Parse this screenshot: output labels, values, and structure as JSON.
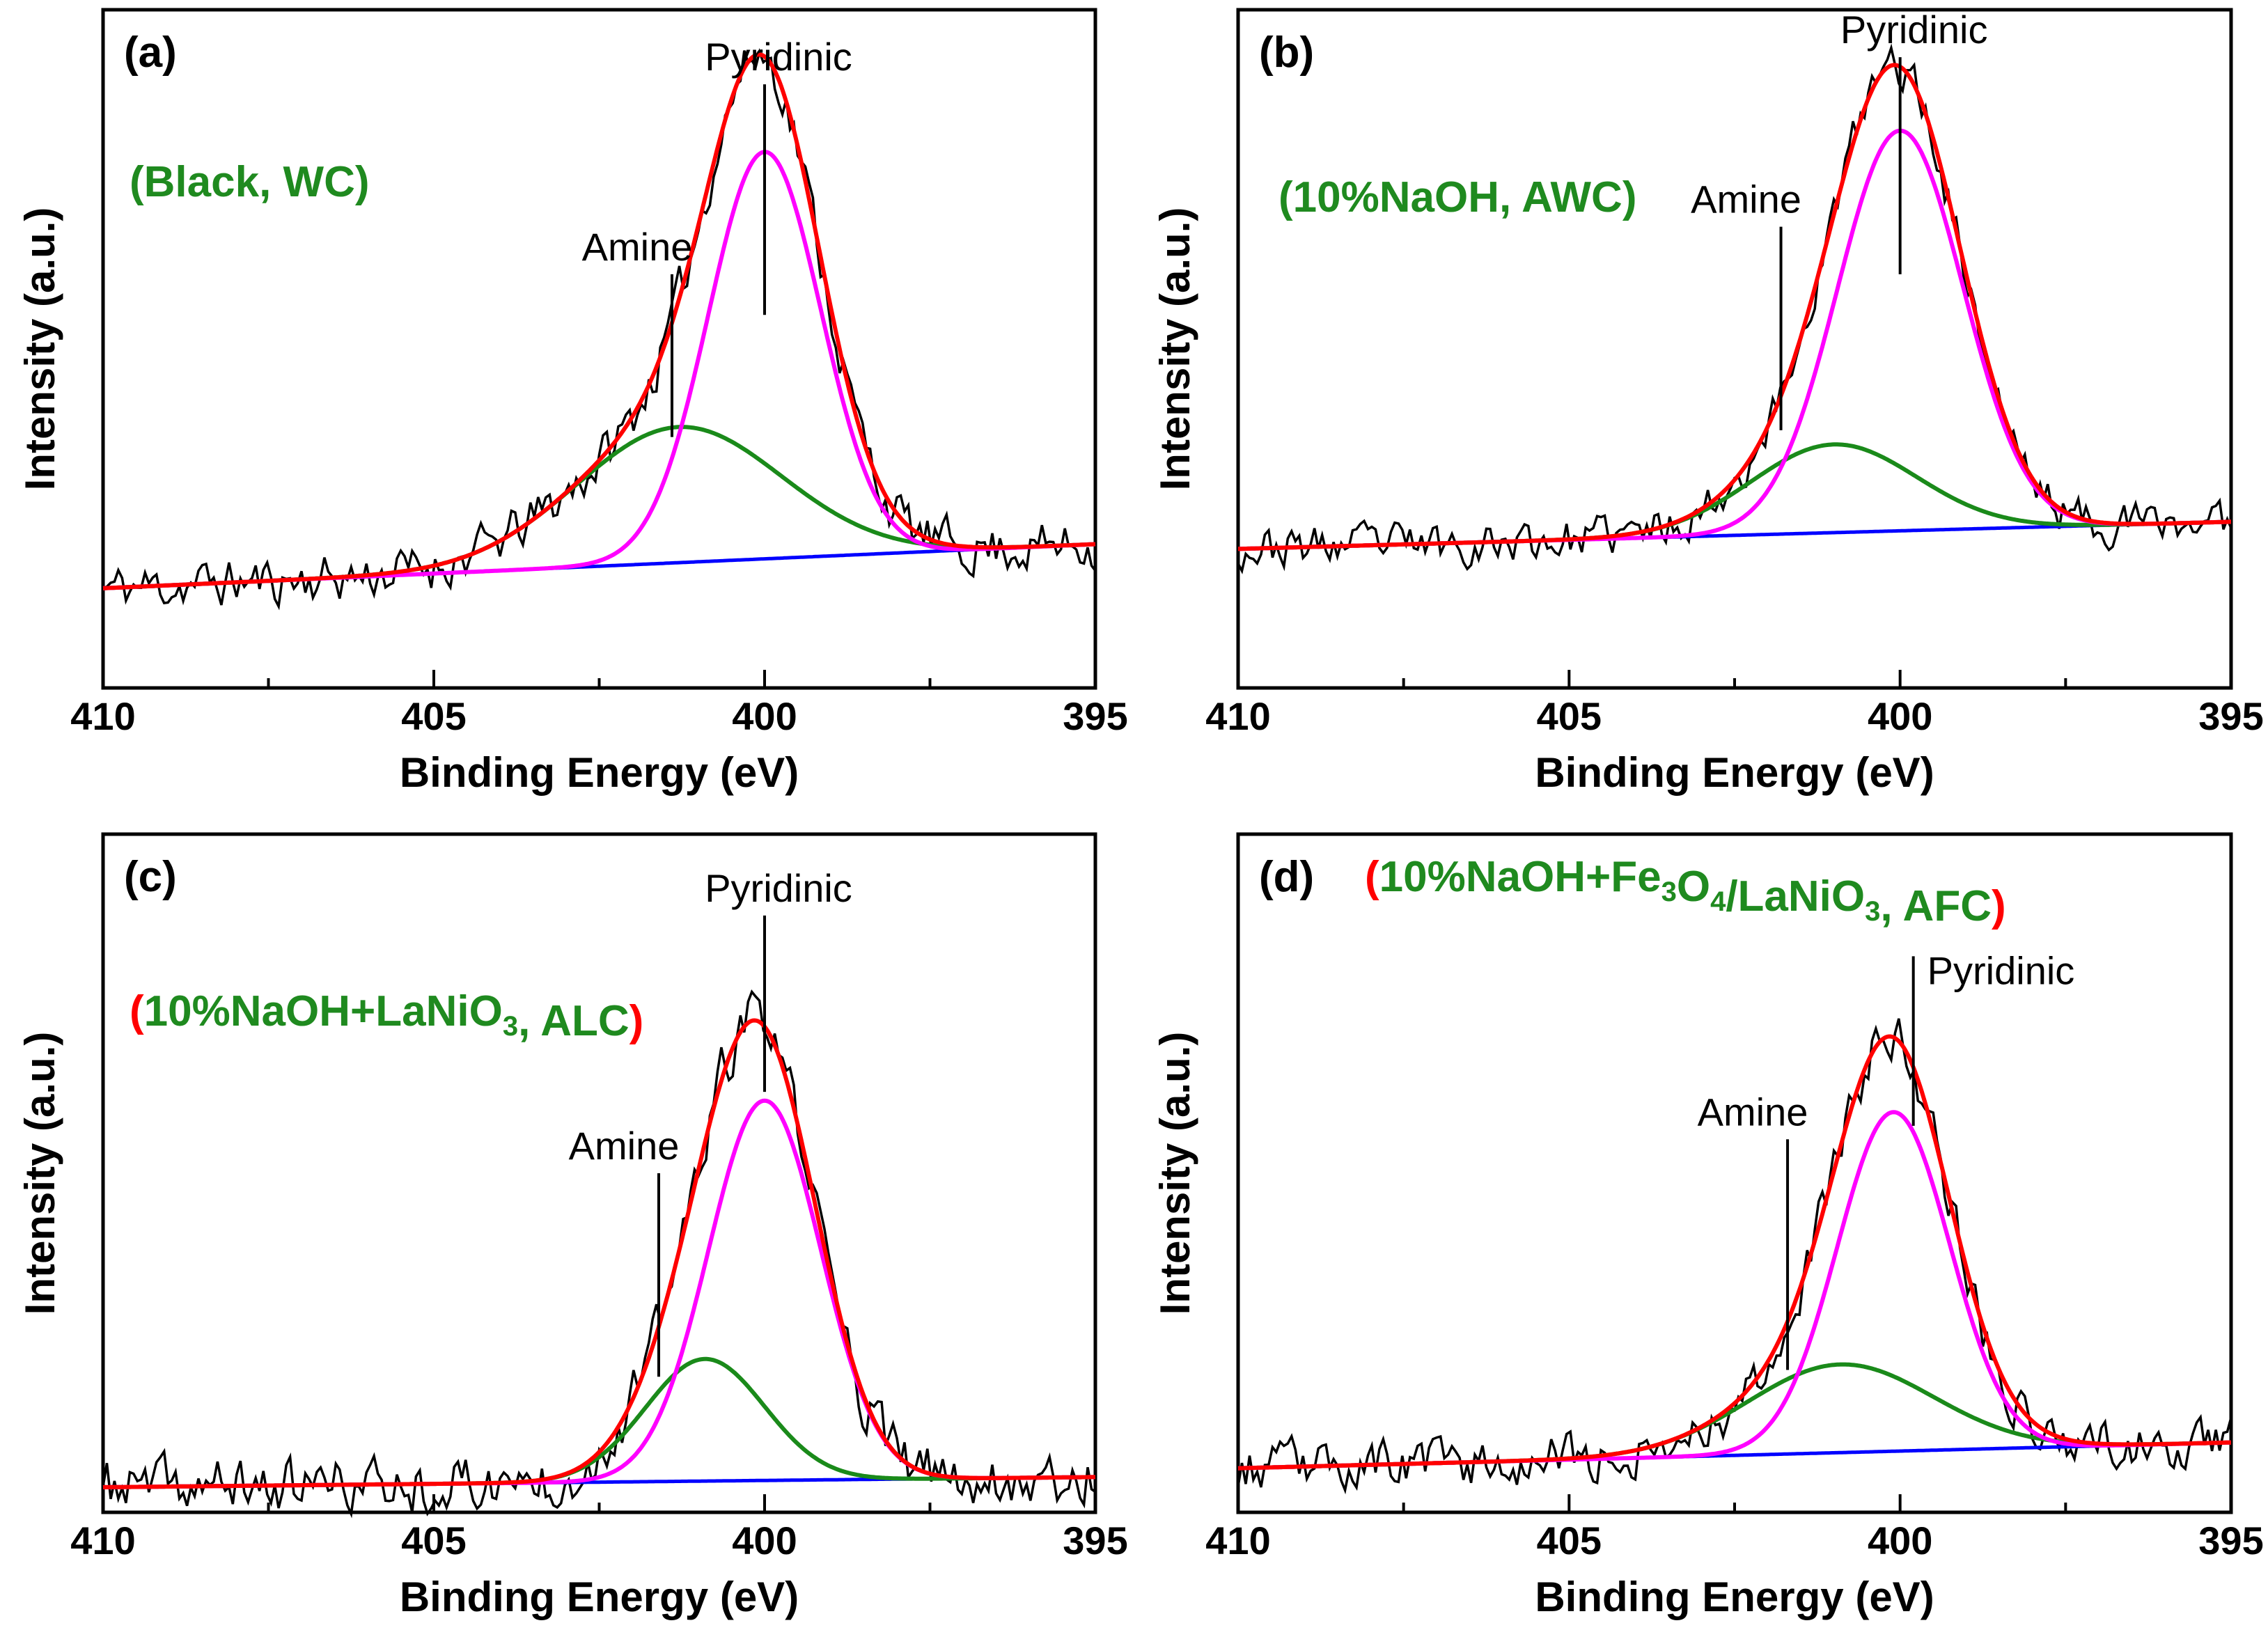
{
  "chart_data": [
    {
      "panel": "(a)",
      "type": "line",
      "sample_label": {
        "open": "(",
        "text": "Black, WC",
        "close": ")",
        "paren_color": "#1f8a1f"
      },
      "xlabel": "Binding Energy (eV)",
      "ylabel": "Intensity (a.u.)",
      "xlim": [
        410,
        395
      ],
      "ylim": [
        0,
        1
      ],
      "xticks": [
        410,
        405,
        400,
        395
      ],
      "annotations": [
        {
          "text": "Pyridinic",
          "x": 400.0,
          "y_tip": 0.89,
          "y_base": 0.55
        },
        {
          "text": "Amine",
          "x": 401.4,
          "y_tip": 0.61,
          "y_base": 0.37
        }
      ],
      "series": [
        {
          "name": "Baseline",
          "color": "#0000ff",
          "bg_start": 0.147,
          "bg_end": 0.212
        },
        {
          "name": "Pyridinic",
          "color": "#ff00ff",
          "center": 400.0,
          "sigma": 0.85,
          "amp": 0.6
        },
        {
          "name": "Amine",
          "color": "#1a8a1a",
          "center": 401.3,
          "sigma": 1.55,
          "amp": 0.2
        },
        {
          "name": "Envelope",
          "color": "#ff0000"
        },
        {
          "name": "Raw data",
          "color": "#000000",
          "noise": 0.035,
          "seed": 11
        }
      ]
    },
    {
      "panel": "(b)",
      "type": "line",
      "sample_label": {
        "open": "(",
        "text": "10%NaOH, AWC",
        "close": ")",
        "paren_color": "#1f8a1f"
      },
      "xlabel": "Binding Energy (eV)",
      "ylabel": "Intensity (a.u.)",
      "xlim": [
        410,
        395
      ],
      "ylim": [
        0,
        1
      ],
      "xticks": [
        410,
        405,
        400,
        395
      ],
      "annotations": [
        {
          "text": "Pyridinic",
          "x": 400.0,
          "y_tip": 0.93,
          "y_base": 0.61
        },
        {
          "text": "Amine",
          "x": 401.8,
          "y_tip": 0.68,
          "y_base": 0.38
        }
      ],
      "series": [
        {
          "name": "Baseline",
          "color": "#0000ff",
          "bg_start": 0.205,
          "bg_end": 0.245
        },
        {
          "name": "Pyridinic",
          "color": "#ff00ff",
          "center": 400.0,
          "sigma": 0.95,
          "amp": 0.59
        },
        {
          "name": "Amine",
          "color": "#1a8a1a",
          "center": 401.0,
          "sigma": 1.25,
          "amp": 0.13
        },
        {
          "name": "Envelope",
          "color": "#ff0000"
        },
        {
          "name": "Raw data",
          "color": "#000000",
          "noise": 0.03,
          "seed": 23
        }
      ]
    },
    {
      "panel": "(c)",
      "type": "line",
      "sample_label": {
        "open": "(",
        "text": "10%NaOH+LaNiO3, ALC",
        "close": ")",
        "paren_color": "#ff0000"
      },
      "xlabel": "Binding Energy (eV)",
      "ylabel": "Intensity (a.u.)",
      "xlim": [
        410,
        395
      ],
      "ylim": [
        0,
        1
      ],
      "xticks": [
        410,
        405,
        400,
        395
      ],
      "annotations": [
        {
          "text": "Pyridinic",
          "x": 400.0,
          "y_tip": 0.88,
          "y_base": 0.62
        },
        {
          "text": "Amine",
          "x": 401.6,
          "y_tip": 0.5,
          "y_base": 0.2
        }
      ],
      "series": [
        {
          "name": "Baseline",
          "color": "#0000ff",
          "bg_start": 0.037,
          "bg_end": 0.052
        },
        {
          "name": "Pyridinic",
          "color": "#ff00ff",
          "center": 400.0,
          "sigma": 0.85,
          "amp": 0.56
        },
        {
          "name": "Amine",
          "color": "#1a8a1a",
          "center": 400.9,
          "sigma": 0.9,
          "amp": 0.18
        },
        {
          "name": "Envelope",
          "color": "#ff0000"
        },
        {
          "name": "Raw data",
          "color": "#000000",
          "noise": 0.04,
          "seed": 37
        }
      ]
    },
    {
      "panel": "(d)",
      "type": "line",
      "sample_label": {
        "open": "(",
        "text": "10%NaOH+Fe3O4/LaNiO3, AFC",
        "close": ")",
        "paren_color": "#ff0000"
      },
      "xlabel": "Binding Energy (eV)",
      "ylabel": "Intensity (a.u.)",
      "xlim": [
        410,
        395
      ],
      "ylim": [
        0,
        1
      ],
      "xticks": [
        410,
        405,
        400,
        395
      ],
      "annotations": [
        {
          "text": "Pyridinic",
          "x": 399.8,
          "y_tip": 0.82,
          "y_base": 0.57
        },
        {
          "text": "Amine",
          "x": 401.7,
          "y_tip": 0.55,
          "y_base": 0.21
        }
      ],
      "series": [
        {
          "name": "Baseline",
          "color": "#0000ff",
          "bg_start": 0.065,
          "bg_end": 0.103
        },
        {
          "name": "Pyridinic",
          "color": "#ff00ff",
          "center": 400.1,
          "sigma": 0.85,
          "amp": 0.5
        },
        {
          "name": "Amine",
          "color": "#1a8a1a",
          "center": 400.9,
          "sigma": 1.4,
          "amp": 0.13
        },
        {
          "name": "Envelope",
          "color": "#ff0000"
        },
        {
          "name": "Raw data",
          "color": "#000000",
          "noise": 0.035,
          "seed": 53
        }
      ]
    }
  ]
}
